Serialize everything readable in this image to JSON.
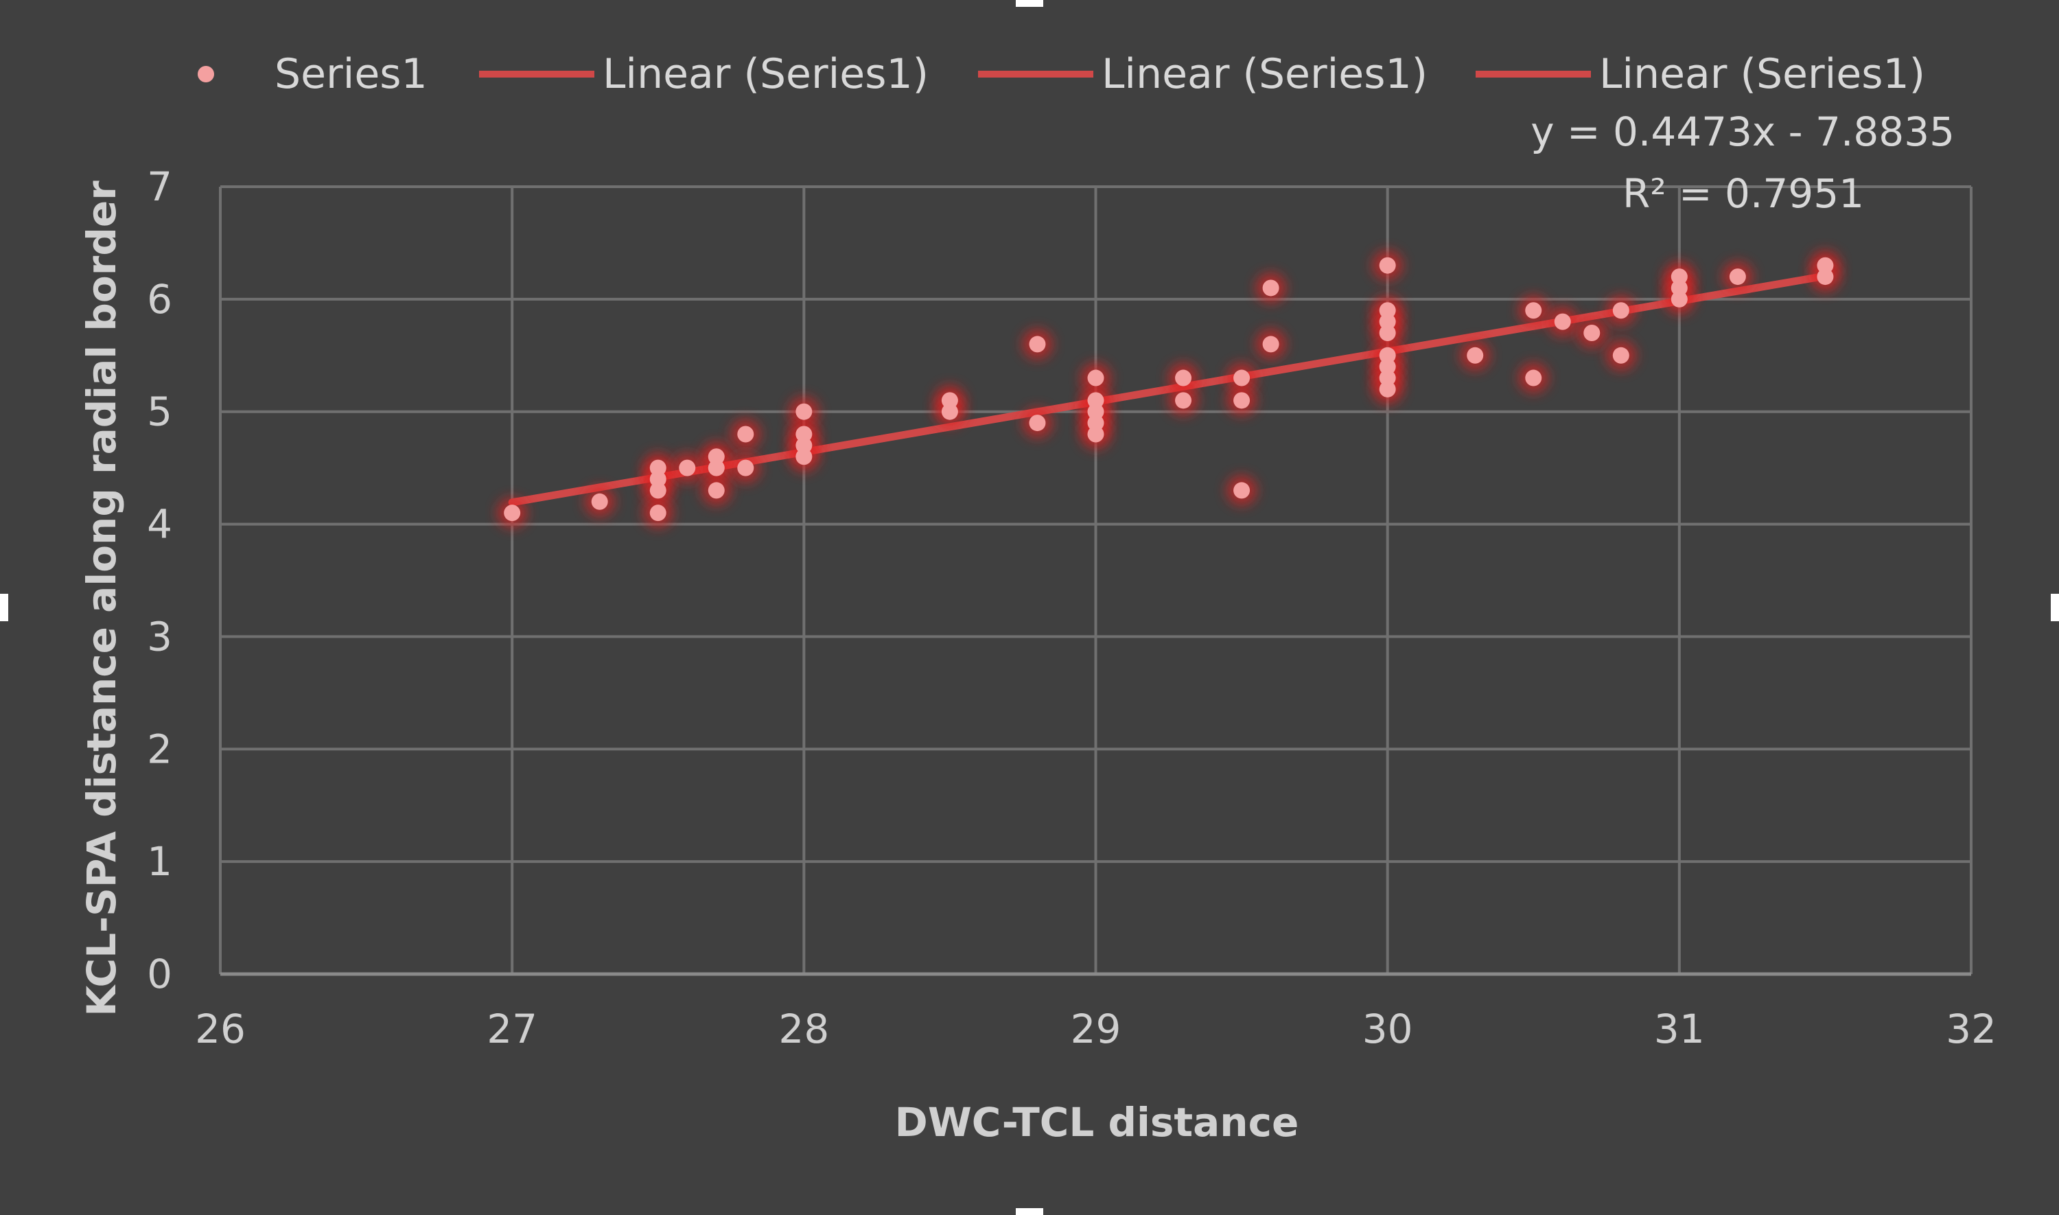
{
  "chart_data": {
    "type": "scatter",
    "xlabel": "DWC-TCL distance",
    "ylabel": "KCL-SPA distance along radial border",
    "xlim": [
      26,
      32
    ],
    "ylim": [
      0,
      7
    ],
    "xticks": [
      "26",
      "27",
      "28",
      "29",
      "30",
      "31",
      "32"
    ],
    "yticks": [
      "0",
      "1",
      "2",
      "3",
      "4",
      "5",
      "6",
      "7"
    ],
    "grid": true,
    "legend_position": "top",
    "legend": [
      "Series1",
      "Linear (Series1)",
      "Linear (Series1)",
      "Linear (Series1)"
    ],
    "colors": {
      "background": "#404040",
      "point": "#f4a0a0",
      "glow": "#e02020",
      "trendline": "#d04848",
      "grid": "#707070"
    },
    "series": [
      {
        "name": "Series1",
        "points": [
          [
            27,
            4.1
          ],
          [
            27.3,
            4.2
          ],
          [
            27.5,
            4.5
          ],
          [
            27.5,
            4.4
          ],
          [
            27.5,
            4.3
          ],
          [
            27.5,
            4.1
          ],
          [
            27.6,
            4.5
          ],
          [
            27.7,
            4.6
          ],
          [
            27.7,
            4.5
          ],
          [
            27.7,
            4.3
          ],
          [
            27.8,
            4.8
          ],
          [
            27.8,
            4.5
          ],
          [
            28,
            5.0
          ],
          [
            28,
            4.8
          ],
          [
            28,
            4.7
          ],
          [
            28,
            4.6
          ],
          [
            28.5,
            5.1
          ],
          [
            28.5,
            5.0
          ],
          [
            28.8,
            5.6
          ],
          [
            28.8,
            4.9
          ],
          [
            29,
            5.3
          ],
          [
            29,
            5.1
          ],
          [
            29,
            5.0
          ],
          [
            29,
            4.9
          ],
          [
            29,
            4.8
          ],
          [
            29.3,
            5.3
          ],
          [
            29.3,
            5.1
          ],
          [
            29.5,
            5.3
          ],
          [
            29.5,
            5.1
          ],
          [
            29.5,
            4.3
          ],
          [
            29.6,
            6.1
          ],
          [
            29.6,
            5.6
          ],
          [
            30,
            6.3
          ],
          [
            30,
            5.9
          ],
          [
            30,
            5.8
          ],
          [
            30,
            5.7
          ],
          [
            30,
            5.5
          ],
          [
            30,
            5.4
          ],
          [
            30,
            5.3
          ],
          [
            30,
            5.2
          ],
          [
            30.3,
            5.5
          ],
          [
            30.5,
            5.9
          ],
          [
            30.5,
            5.3
          ],
          [
            30.6,
            5.8
          ],
          [
            30.7,
            5.7
          ],
          [
            30.8,
            5.9
          ],
          [
            30.8,
            5.5
          ],
          [
            31,
            6.2
          ],
          [
            31,
            6.1
          ],
          [
            31,
            6.0
          ],
          [
            31.2,
            6.2
          ],
          [
            31.5,
            6.3
          ],
          [
            31.5,
            6.2
          ]
        ]
      }
    ],
    "trendline": {
      "type": "linear",
      "slope": 0.4473,
      "intercept": -7.8835,
      "x_range": [
        27,
        31.5
      ],
      "equation_label": "y = 0.4473x - 7.8835",
      "r2_label": "R² = 0.7951"
    }
  }
}
